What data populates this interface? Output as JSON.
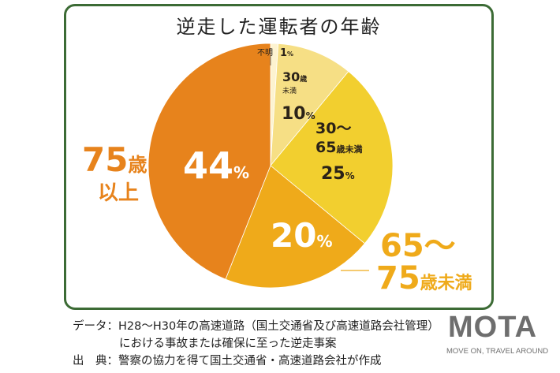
{
  "chart_data": {
    "type": "pie",
    "title": "逆走した運転者の年齢",
    "slices": [
      {
        "key": "unknown",
        "value": 1,
        "color": "#fdf3d0"
      },
      {
        "key": "u30",
        "value": 10,
        "color": "#f6df85"
      },
      {
        "key": "a30_65",
        "value": 25,
        "color": "#f2cf2f"
      },
      {
        "key": "a65_75",
        "value": 20,
        "color": "#efaa1a"
      },
      {
        "key": "a75",
        "value": 44,
        "color": "#e7831c"
      }
    ],
    "labels": {
      "unknown": {
        "name": "不明",
        "value": "1",
        "unit": "%"
      },
      "u30": {
        "name_line1": "30",
        "name_small1": "歳",
        "name_small2": "未満",
        "value": "10",
        "unit": "%"
      },
      "a30_65": {
        "line1": "30〜",
        "line2_num": "65",
        "line2_small": "歳未満",
        "value": "25",
        "unit": "%"
      },
      "a65_75": {
        "value": "20",
        "unit": "%",
        "outside_line1": "65〜",
        "outside_num": "75",
        "outside_small": "歳未満"
      },
      "a75": {
        "value": "44",
        "unit": "%",
        "outside_num": "75",
        "outside_small": "歳",
        "outside_line2": "以上"
      }
    }
  },
  "notes": {
    "data_line1": "データ：H28〜H30年の高速道路（国土交通省及び高速道路会社管理）",
    "data_line2": "における事故または確保に至った逆走事案",
    "source": "出　典：警察の協力を得て国土交通省・高速道路会社が作成"
  },
  "logo": {
    "word": "MOTA",
    "tagline": "MOVE ON, TRAVEL AROUND"
  },
  "colors": {
    "frame": "#3c6b35",
    "label_dark": "#2b2218",
    "label_light": "#ffffff",
    "label_orange_text": "#e7831c",
    "label_amber_text": "#efaa1a"
  }
}
